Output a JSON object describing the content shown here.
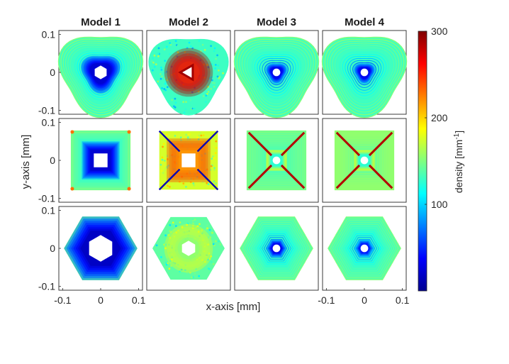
{
  "chart_data": {
    "type": "heatmap",
    "column_titles": [
      "Model 1",
      "Model 2",
      "Model 3",
      "Model 4"
    ],
    "shapes": [
      "rounded-triangle",
      "square",
      "hexagon"
    ],
    "xlabel": "x-axis [mm]",
    "ylabel": "y-axis [mm]",
    "x_ticks": [
      -0.1,
      0,
      0.1
    ],
    "x_tick_labels": [
      "-0.1",
      "0",
      "0.1"
    ],
    "y_ticks": [
      0.1,
      0,
      -0.1
    ],
    "y_tick_labels": [
      "0.1",
      "0",
      "-0.1"
    ],
    "xlim": [
      -0.11,
      0.11
    ],
    "ylim": [
      -0.11,
      0.11
    ],
    "colorbar": {
      "label": "density [mm",
      "label_sup": "-1",
      "label_end": "]",
      "range": [
        0,
        300
      ],
      "ticks": [
        100,
        200,
        300
      ],
      "tick_labels": [
        "100",
        "200",
        "300"
      ],
      "colormap": "jet"
    },
    "cells": [
      {
        "row": 0,
        "col": 0,
        "shape": "tri",
        "outer": 0.105,
        "inner": 0.018,
        "hole": "hex",
        "inner_density": 10,
        "outer_density": 150,
        "bg_density": 130,
        "tex": "rings",
        "hot": "none"
      },
      {
        "row": 0,
        "col": 1,
        "shape": "tri",
        "outer": 0.1,
        "inner": 0.02,
        "hole": "tri",
        "inner_density": 290,
        "outer_density": 150,
        "bg_density": 130,
        "tex": "noise",
        "hot": "none"
      },
      {
        "row": 0,
        "col": 2,
        "shape": "tri",
        "outer": 0.105,
        "inner": 0.01,
        "hole": "circ",
        "inner_density": 20,
        "outer_density": 150,
        "bg_density": 130,
        "tex": "rings",
        "hot": "none"
      },
      {
        "row": 0,
        "col": 3,
        "shape": "tri",
        "outer": 0.105,
        "inner": 0.01,
        "hole": "circ",
        "inner_density": 20,
        "outer_density": 150,
        "bg_density": 130,
        "tex": "rings",
        "hot": "none"
      },
      {
        "row": 1,
        "col": 0,
        "shape": "sq",
        "outer": 0.077,
        "inner": 0.018,
        "hole": "sq",
        "inner_density": 10,
        "outer_density": 150,
        "bg_density": 130,
        "tex": "rings",
        "hot": "corners"
      },
      {
        "row": 1,
        "col": 1,
        "shape": "sq",
        "outer": 0.077,
        "inner": 0.018,
        "hole": "sq",
        "inner_density": 250,
        "outer_density": 180,
        "bg_density": 175,
        "tex": "noise",
        "hot": "diag-blue"
      },
      {
        "row": 1,
        "col": 2,
        "shape": "sq",
        "outer": 0.077,
        "inner": 0.01,
        "hole": "circ",
        "inner_density": 110,
        "outer_density": 150,
        "bg_density": 140,
        "tex": "rings",
        "hot": "diag-red"
      },
      {
        "row": 1,
        "col": 3,
        "shape": "sq",
        "outer": 0.077,
        "inner": 0.01,
        "hole": "circ",
        "inner_density": 110,
        "outer_density": 155,
        "bg_density": 155,
        "tex": "rings",
        "hot": "diag-red"
      },
      {
        "row": 2,
        "col": 0,
        "shape": "hexg",
        "outer": 0.095,
        "inner": 0.035,
        "hole": "hex",
        "inner_density": 5,
        "outer_density": 150,
        "bg_density": 130,
        "tex": "rings",
        "hot": "none"
      },
      {
        "row": 2,
        "col": 1,
        "shape": "hexg",
        "outer": 0.095,
        "inner": 0.02,
        "hole": "hex",
        "inner_density": 185,
        "outer_density": 145,
        "bg_density": 140,
        "tex": "noise",
        "hot": "none"
      },
      {
        "row": 2,
        "col": 2,
        "shape": "hexg",
        "outer": 0.095,
        "inner": 0.01,
        "hole": "circ",
        "inner_density": 20,
        "outer_density": 150,
        "bg_density": 130,
        "tex": "rings",
        "hot": "none"
      },
      {
        "row": 2,
        "col": 3,
        "shape": "hexg",
        "outer": 0.095,
        "inner": 0.01,
        "hole": "circ",
        "inner_density": 30,
        "outer_density": 150,
        "bg_density": 130,
        "tex": "rings",
        "hot": "none"
      }
    ]
  }
}
